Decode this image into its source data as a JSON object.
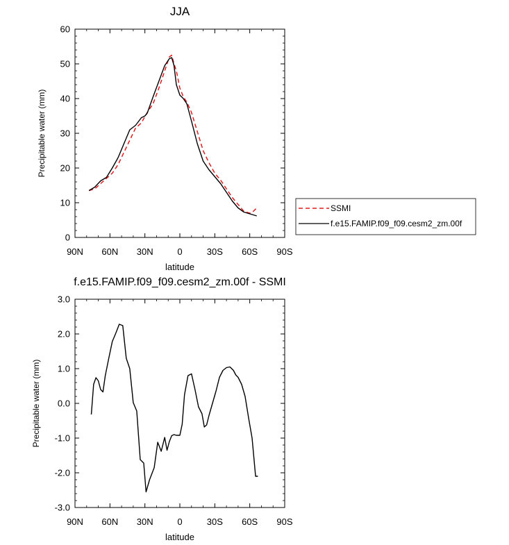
{
  "chart_data": [
    {
      "type": "line",
      "title": "JJA",
      "xlabel": "latitude",
      "ylabel": "Precipitable water (mm)",
      "xlim": [
        90,
        -90
      ],
      "ylim": [
        0,
        60
      ],
      "xticks": [
        90,
        60,
        30,
        0,
        -30,
        -60,
        -90
      ],
      "xtick_labels": [
        "90N",
        "60N",
        "30N",
        "0",
        "30S",
        "60S",
        "90S"
      ],
      "yticks": [
        0,
        10,
        20,
        30,
        40,
        50,
        60
      ],
      "ytick_labels": [
        "0",
        "10",
        "20",
        "30",
        "40",
        "50",
        "60"
      ],
      "legend": {
        "placement": "right",
        "entries": [
          "SSMI",
          "f.e15.FAMIP.f09_f09.cesm2_zm.00f"
        ]
      },
      "series": [
        {
          "name": "SSMI",
          "color": "#e31a1c",
          "dash": true,
          "x": [
            78,
            73,
            68,
            63,
            58,
            53,
            48,
            43,
            38,
            33,
            28,
            23,
            18,
            13,
            9,
            7,
            5,
            3,
            0,
            -3,
            -6,
            -10,
            -15,
            -20,
            -25,
            -30,
            -35,
            -40,
            -45,
            -50,
            -55,
            -60,
            -63,
            -66
          ],
          "y": [
            13.5,
            14.0,
            15.5,
            17.0,
            18.5,
            21.0,
            24.5,
            28.0,
            31.5,
            33.0,
            36.0,
            38.5,
            43.0,
            48.0,
            52.0,
            52.5,
            50.0,
            48.0,
            43.0,
            40.5,
            39.0,
            36.0,
            30.5,
            25.0,
            21.5,
            18.5,
            16.5,
            14.0,
            11.5,
            9.5,
            7.5,
            7.0,
            7.5,
            8.5
          ]
        },
        {
          "name": "f.e15.FAMIP.f09_f09.cesm2_zm.00f",
          "color": "#000000",
          "dash": false,
          "x": [
            78,
            73,
            68,
            63,
            58,
            53,
            48,
            43,
            38,
            33,
            30,
            28,
            23,
            18,
            13,
            9,
            7,
            5,
            3,
            0,
            -3,
            -6,
            -10,
            -15,
            -20,
            -25,
            -30,
            -35,
            -40,
            -45,
            -50,
            -55,
            -60,
            -63,
            -66
          ],
          "y": [
            13.5,
            14.5,
            16.3,
            17.3,
            20.0,
            23.0,
            27.0,
            31.0,
            32.3,
            34.5,
            35.0,
            35.8,
            40.5,
            45.0,
            49.5,
            51.5,
            51.8,
            49.5,
            44.0,
            41.0,
            40.0,
            38.5,
            33.5,
            27.0,
            22.0,
            19.5,
            17.5,
            15.5,
            13.0,
            10.5,
            8.5,
            7.3,
            6.8,
            6.5,
            6.2
          ]
        }
      ]
    },
    {
      "type": "line",
      "title": "f.e15.FAMIP.f09_f09.cesm2_zm.00f - SSMI",
      "xlabel": "latitude",
      "ylabel": "Precipitable water (mm)",
      "xlim": [
        90,
        -90
      ],
      "ylim": [
        -3,
        3
      ],
      "xticks": [
        90,
        60,
        30,
        0,
        -30,
        -60,
        -90
      ],
      "xtick_labels": [
        "90N",
        "60N",
        "30N",
        "0",
        "30S",
        "60S",
        "90S"
      ],
      "yticks": [
        -3,
        -2,
        -1,
        0,
        1,
        2,
        3
      ],
      "ytick_labels": [
        "-3.0",
        "-2.0",
        "-1.0",
        "0.0",
        "1.0",
        "2.0",
        "3.0"
      ],
      "series": [
        {
          "color": "#000000",
          "dash": false,
          "x": [
            76,
            74,
            72,
            70,
            68,
            66,
            64,
            61,
            58,
            55,
            52,
            49,
            46,
            43,
            40,
            37,
            34,
            31,
            29,
            26,
            22,
            19,
            16,
            13,
            11,
            9,
            7,
            5,
            3,
            0,
            -2,
            -4,
            -7,
            -10,
            -13,
            -16,
            -19,
            -21,
            -23,
            -25,
            -28,
            -31,
            -34,
            -37,
            -40,
            -43,
            -46,
            -48,
            -50,
            -53,
            -56,
            -59,
            -62,
            -65,
            -67
          ],
          "y": [
            -0.32,
            0.55,
            0.74,
            0.65,
            0.4,
            0.33,
            0.8,
            1.3,
            1.78,
            2.02,
            2.28,
            2.24,
            1.3,
            1.0,
            0.02,
            -0.22,
            -1.62,
            -1.72,
            -2.55,
            -2.2,
            -1.85,
            -1.12,
            -1.38,
            -0.98,
            -1.35,
            -1.1,
            -0.93,
            -0.9,
            -0.92,
            -0.92,
            -0.6,
            0.25,
            0.8,
            0.85,
            0.4,
            -0.1,
            -0.3,
            -0.68,
            -0.62,
            -0.35,
            0.0,
            0.35,
            0.75,
            0.95,
            1.03,
            1.05,
            0.95,
            0.82,
            0.75,
            0.55,
            0.2,
            -0.42,
            -1.0,
            -2.1,
            -2.1
          ]
        }
      ]
    }
  ]
}
